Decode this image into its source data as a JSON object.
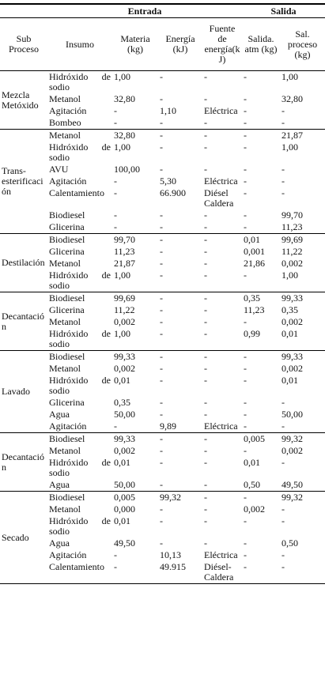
{
  "header": {
    "entrada": "Entrada",
    "salida": "Salida",
    "columns": [
      "Sub Proceso",
      "Insumo",
      "Materia (kg)",
      "Energía (kJ)",
      "Fuente de energía(kJ)",
      "Salida. atm (kg)",
      "Sal. proceso (kg)"
    ]
  },
  "groups": [
    {
      "name": "Mezcla Metóxido",
      "rows": [
        [
          "Hidróxido de sodio",
          "1,00",
          "-",
          "-",
          "-",
          "1,00"
        ],
        [
          "Metanol",
          "32,80",
          "-",
          "-",
          "-",
          "32,80"
        ],
        [
          "Agitación",
          "-",
          "1,10",
          "Eléctrica",
          "-",
          "-"
        ],
        [
          "Bombeo",
          "-",
          "-",
          "-",
          "-",
          "-"
        ]
      ]
    },
    {
      "name": "Trans-esterificación",
      "rows": [
        [
          "Metanol",
          "32,80",
          "-",
          "-",
          "-",
          "21,87"
        ],
        [
          "Hidróxido de sodio",
          "1,00",
          "-",
          "-",
          "-",
          "1,00"
        ],
        [
          "AVU",
          "100,00",
          "-",
          "-",
          "-",
          "-"
        ],
        [
          "Agitación",
          "-",
          "5,30",
          "Eléctrica",
          "-",
          "-"
        ],
        [
          "Calentamiento",
          "-",
          "66.900",
          "Diésel Caldera",
          "-",
          "-"
        ],
        [
          "Biodiesel",
          "-",
          "-",
          "-",
          "-",
          "99,70"
        ],
        [
          "Glicerina",
          "-",
          "-",
          "-",
          "-",
          "11,23"
        ]
      ]
    },
    {
      "name": "Destilación",
      "rows": [
        [
          "Biodiesel",
          "99,70",
          "-",
          "-",
          "0,01",
          "99,69"
        ],
        [
          "Glicerina",
          "11,23",
          "-",
          "-",
          "0,001",
          "11,22"
        ],
        [
          "Metanol",
          "21,87",
          "-",
          "-",
          "21,86",
          "0,002"
        ],
        [
          "Hidróxido de sodio",
          "1,00",
          "-",
          "-",
          "-",
          "1,00"
        ]
      ]
    },
    {
      "name": "Decantación",
      "rows": [
        [
          "Biodiesel",
          "99,69",
          "-",
          "-",
          "0,35",
          "99,33"
        ],
        [
          "Glicerina",
          "11,22",
          "-",
          "-",
          "11,23",
          "0,35"
        ],
        [
          "Metanol",
          "0,002",
          "-",
          "-",
          "-",
          "0,002"
        ],
        [
          "Hidróxido de sodio",
          "1,00",
          "-",
          "-",
          "0,99",
          "0,01"
        ]
      ]
    },
    {
      "name": "Lavado",
      "rows": [
        [
          "Biodiesel",
          "99,33",
          "-",
          "-",
          "-",
          "99,33"
        ],
        [
          "Metanol",
          "0,002",
          "-",
          "-",
          "-",
          "0,002"
        ],
        [
          "Hidróxido de sodio",
          "0,01",
          "-",
          "-",
          "-",
          "0,01"
        ],
        [
          "Glicerina",
          "0,35",
          "-",
          "-",
          "-",
          "-"
        ],
        [
          "Agua",
          "50,00",
          "-",
          "-",
          "-",
          "50,00"
        ],
        [
          "Agitación",
          "-",
          "9,89",
          "Eléctrica",
          "-",
          "-"
        ]
      ]
    },
    {
      "name": "Decantación",
      "rows": [
        [
          "Biodiesel",
          "99,33",
          "-",
          "-",
          "0,005",
          "99,32"
        ],
        [
          "Metanol",
          "0,002",
          "-",
          "-",
          "-",
          "0,002"
        ],
        [
          "Hidróxido de sodio",
          "0,01",
          "-",
          "-",
          "0,01",
          "-"
        ],
        [
          "Agua",
          "50,00",
          "-",
          "-",
          "0,50",
          "49,50"
        ]
      ]
    },
    {
      "name": "Secado",
      "rows": [
        [
          "Biodiesel",
          "0,005",
          "99,32",
          "-",
          "-",
          "99,32"
        ],
        [
          "Metanol",
          "0,000",
          "-",
          "-",
          "0,002",
          "-"
        ],
        [
          "Hidróxido de sodio",
          "0,01",
          "-",
          "-",
          "-",
          "-"
        ],
        [
          "Agua",
          "49,50",
          "-",
          "-",
          "-",
          "0,50"
        ],
        [
          "Agitación",
          "-",
          "10,13",
          "Eléctrica",
          "-",
          "-"
        ],
        [
          "Calentamiento",
          "-",
          "49.915",
          "Diésel-Caldera",
          "-",
          "-"
        ]
      ]
    }
  ]
}
